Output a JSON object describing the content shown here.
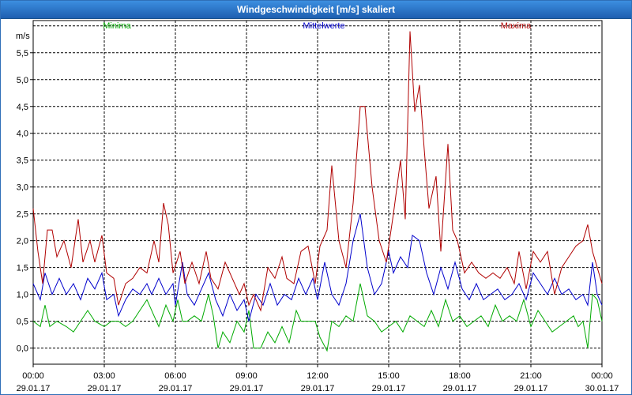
{
  "window": {
    "title": "Windgeschwindigkeit [m/s] skaliert"
  },
  "colors": {
    "minima": "#00aa00",
    "mittelwerte": "#0000cc",
    "maxima": "#b00000"
  },
  "chart_data": {
    "type": "line",
    "title": "Windgeschwindigkeit [m/s] skaliert",
    "ylabel": "m/s",
    "ylim": [
      -0.3,
      6.1
    ],
    "yticks": [
      "0,0",
      "0,5",
      "1,0",
      "1,5",
      "2,0",
      "2,5",
      "3,0",
      "3,5",
      "4,0",
      "4,5",
      "5,0",
      "5,5"
    ],
    "xrange_hours": [
      0,
      24
    ],
    "xticks": [
      {
        "time": "00:00",
        "date": "29.01.17"
      },
      {
        "time": "03:00",
        "date": "29.01.17"
      },
      {
        "time": "06:00",
        "date": "29.01.17"
      },
      {
        "time": "09:00",
        "date": "29.01.17"
      },
      {
        "time": "12:00",
        "date": "29.01.17"
      },
      {
        "time": "15:00",
        "date": "29.01.17"
      },
      {
        "time": "18:00",
        "date": "29.01.17"
      },
      {
        "time": "21:00",
        "date": "29.01.17"
      },
      {
        "time": "00:00",
        "date": "30.01.17"
      }
    ],
    "grid": true,
    "legend_position": "top",
    "series": [
      {
        "name": "Minima",
        "color": "#00aa00",
        "points": [
          [
            0,
            0.5
          ],
          [
            0.3,
            0.4
          ],
          [
            0.5,
            0.8
          ],
          [
            0.7,
            0.4
          ],
          [
            1.0,
            0.5
          ],
          [
            1.4,
            0.4
          ],
          [
            1.7,
            0.3
          ],
          [
            2.0,
            0.5
          ],
          [
            2.3,
            0.7
          ],
          [
            2.6,
            0.5
          ],
          [
            3.0,
            0.4
          ],
          [
            3.3,
            0.5
          ],
          [
            3.6,
            0.5
          ],
          [
            3.9,
            0.4
          ],
          [
            4.2,
            0.5
          ],
          [
            4.5,
            0.7
          ],
          [
            4.8,
            0.9
          ],
          [
            5.1,
            0.6
          ],
          [
            5.3,
            0.4
          ],
          [
            5.6,
            0.8
          ],
          [
            5.9,
            0.5
          ],
          [
            6.1,
            0.9
          ],
          [
            6.3,
            0.5
          ],
          [
            6.5,
            0.5
          ],
          [
            6.8,
            0.6
          ],
          [
            7.1,
            0.5
          ],
          [
            7.4,
            1.0
          ],
          [
            7.6,
            0.6
          ],
          [
            7.8,
            0.0
          ],
          [
            8.0,
            0.3
          ],
          [
            8.3,
            0.1
          ],
          [
            8.6,
            0.5
          ],
          [
            8.9,
            0.3
          ],
          [
            9.1,
            0.7
          ],
          [
            9.3,
            0.0
          ],
          [
            9.6,
            0.0
          ],
          [
            9.9,
            0.3
          ],
          [
            10.2,
            0.1
          ],
          [
            10.5,
            0.4
          ],
          [
            10.8,
            0.1
          ],
          [
            11.1,
            0.7
          ],
          [
            11.3,
            0.5
          ],
          [
            11.6,
            0.5
          ],
          [
            11.9,
            0.5
          ],
          [
            12.1,
            0.2
          ],
          [
            12.4,
            -0.05
          ],
          [
            12.6,
            0.5
          ],
          [
            12.9,
            0.4
          ],
          [
            13.2,
            0.6
          ],
          [
            13.5,
            0.5
          ],
          [
            13.8,
            1.2
          ],
          [
            14.1,
            0.6
          ],
          [
            14.4,
            0.5
          ],
          [
            14.7,
            0.3
          ],
          [
            15.0,
            0.4
          ],
          [
            15.3,
            0.5
          ],
          [
            15.6,
            0.3
          ],
          [
            15.9,
            0.6
          ],
          [
            16.2,
            0.5
          ],
          [
            16.5,
            0.4
          ],
          [
            16.8,
            0.7
          ],
          [
            17.1,
            0.4
          ],
          [
            17.4,
            0.9
          ],
          [
            17.7,
            0.5
          ],
          [
            18.0,
            0.6
          ],
          [
            18.3,
            0.4
          ],
          [
            18.6,
            0.5
          ],
          [
            18.9,
            0.6
          ],
          [
            19.2,
            0.4
          ],
          [
            19.5,
            0.8
          ],
          [
            19.8,
            0.5
          ],
          [
            20.1,
            0.6
          ],
          [
            20.4,
            0.5
          ],
          [
            20.7,
            0.9
          ],
          [
            21.0,
            0.4
          ],
          [
            21.3,
            0.7
          ],
          [
            21.6,
            0.5
          ],
          [
            21.9,
            0.3
          ],
          [
            22.2,
            0.4
          ],
          [
            22.5,
            0.5
          ],
          [
            22.8,
            0.6
          ],
          [
            23.0,
            0.4
          ],
          [
            23.2,
            0.5
          ],
          [
            23.4,
            0.0
          ],
          [
            23.6,
            1.0
          ],
          [
            23.8,
            0.9
          ],
          [
            24.0,
            0.5
          ]
        ]
      },
      {
        "name": "Mittelwerte",
        "color": "#0000cc",
        "points": [
          [
            0,
            1.2
          ],
          [
            0.3,
            0.9
          ],
          [
            0.5,
            1.4
          ],
          [
            0.8,
            1.0
          ],
          [
            1.1,
            1.3
          ],
          [
            1.4,
            1.0
          ],
          [
            1.7,
            1.2
          ],
          [
            2.0,
            0.9
          ],
          [
            2.3,
            1.3
          ],
          [
            2.6,
            1.1
          ],
          [
            2.9,
            1.4
          ],
          [
            3.1,
            0.9
          ],
          [
            3.4,
            1.0
          ],
          [
            3.6,
            0.6
          ],
          [
            3.9,
            0.9
          ],
          [
            4.2,
            1.1
          ],
          [
            4.5,
            1.0
          ],
          [
            4.8,
            1.2
          ],
          [
            5.0,
            1.0
          ],
          [
            5.3,
            1.3
          ],
          [
            5.6,
            1.0
          ],
          [
            5.9,
            1.2
          ],
          [
            6.0,
            0.8
          ],
          [
            6.3,
            1.6
          ],
          [
            6.5,
            1.0
          ],
          [
            6.8,
            0.8
          ],
          [
            7.1,
            1.1
          ],
          [
            7.4,
            1.4
          ],
          [
            7.7,
            0.9
          ],
          [
            8.0,
            0.6
          ],
          [
            8.3,
            1.0
          ],
          [
            8.6,
            0.7
          ],
          [
            8.9,
            0.9
          ],
          [
            9.1,
            0.5
          ],
          [
            9.4,
            1.0
          ],
          [
            9.7,
            0.8
          ],
          [
            10.0,
            1.2
          ],
          [
            10.3,
            0.8
          ],
          [
            10.6,
            1.0
          ],
          [
            10.9,
            0.9
          ],
          [
            11.2,
            1.3
          ],
          [
            11.5,
            1.0
          ],
          [
            11.8,
            1.3
          ],
          [
            12.0,
            0.9
          ],
          [
            12.3,
            1.6
          ],
          [
            12.6,
            1.0
          ],
          [
            12.9,
            0.8
          ],
          [
            13.2,
            1.2
          ],
          [
            13.5,
            2.0
          ],
          [
            13.8,
            2.5
          ],
          [
            14.1,
            1.5
          ],
          [
            14.4,
            1.0
          ],
          [
            14.7,
            1.2
          ],
          [
            15.0,
            1.8
          ],
          [
            15.2,
            1.4
          ],
          [
            15.5,
            1.7
          ],
          [
            15.8,
            1.5
          ],
          [
            16.0,
            2.1
          ],
          [
            16.3,
            2.0
          ],
          [
            16.6,
            1.4
          ],
          [
            16.9,
            1.0
          ],
          [
            17.2,
            1.5
          ],
          [
            17.5,
            1.1
          ],
          [
            17.8,
            1.6
          ],
          [
            18.1,
            1.1
          ],
          [
            18.4,
            0.9
          ],
          [
            18.7,
            1.2
          ],
          [
            19.0,
            0.9
          ],
          [
            19.3,
            1.0
          ],
          [
            19.6,
            1.1
          ],
          [
            19.9,
            0.9
          ],
          [
            20.2,
            1.0
          ],
          [
            20.5,
            1.2
          ],
          [
            20.8,
            0.9
          ],
          [
            21.1,
            1.4
          ],
          [
            21.4,
            1.2
          ],
          [
            21.7,
            1.0
          ],
          [
            22.0,
            1.3
          ],
          [
            22.3,
            1.0
          ],
          [
            22.6,
            1.1
          ],
          [
            22.9,
            0.9
          ],
          [
            23.2,
            1.0
          ],
          [
            23.4,
            0.8
          ],
          [
            23.6,
            1.6
          ],
          [
            23.8,
            1.0
          ],
          [
            24.0,
            0.8
          ]
        ]
      },
      {
        "name": "Maxima",
        "color": "#b00000",
        "points": [
          [
            0,
            2.6
          ],
          [
            0.2,
            1.8
          ],
          [
            0.4,
            1.2
          ],
          [
            0.6,
            2.2
          ],
          [
            0.8,
            2.2
          ],
          [
            1.0,
            1.7
          ],
          [
            1.3,
            2.0
          ],
          [
            1.6,
            1.5
          ],
          [
            1.9,
            2.4
          ],
          [
            2.1,
            1.6
          ],
          [
            2.4,
            2.0
          ],
          [
            2.6,
            1.6
          ],
          [
            2.9,
            2.1
          ],
          [
            3.1,
            1.4
          ],
          [
            3.4,
            1.3
          ],
          [
            3.6,
            0.8
          ],
          [
            3.9,
            1.2
          ],
          [
            4.2,
            1.3
          ],
          [
            4.5,
            1.5
          ],
          [
            4.8,
            1.4
          ],
          [
            5.1,
            2.0
          ],
          [
            5.3,
            1.6
          ],
          [
            5.5,
            2.7
          ],
          [
            5.7,
            2.3
          ],
          [
            5.9,
            1.4
          ],
          [
            6.2,
            1.8
          ],
          [
            6.4,
            1.2
          ],
          [
            6.7,
            1.6
          ],
          [
            7.0,
            1.2
          ],
          [
            7.3,
            1.8
          ],
          [
            7.5,
            1.3
          ],
          [
            7.8,
            1.1
          ],
          [
            8.1,
            1.6
          ],
          [
            8.4,
            1.3
          ],
          [
            8.7,
            1.0
          ],
          [
            8.9,
            1.2
          ],
          [
            9.1,
            0.8
          ],
          [
            9.3,
            1.0
          ],
          [
            9.6,
            0.7
          ],
          [
            9.9,
            1.5
          ],
          [
            10.2,
            1.3
          ],
          [
            10.5,
            1.7
          ],
          [
            10.7,
            1.3
          ],
          [
            11.0,
            1.2
          ],
          [
            11.3,
            1.8
          ],
          [
            11.6,
            1.9
          ],
          [
            11.9,
            1.2
          ],
          [
            12.1,
            1.9
          ],
          [
            12.4,
            2.2
          ],
          [
            12.6,
            3.4
          ],
          [
            12.9,
            2.0
          ],
          [
            13.2,
            1.5
          ],
          [
            13.5,
            2.7
          ],
          [
            13.8,
            4.5
          ],
          [
            14.0,
            4.5
          ],
          [
            14.3,
            3.0
          ],
          [
            14.6,
            2.0
          ],
          [
            14.9,
            1.6
          ],
          [
            15.2,
            2.5
          ],
          [
            15.5,
            3.5
          ],
          [
            15.7,
            2.4
          ],
          [
            15.9,
            5.9
          ],
          [
            16.1,
            4.4
          ],
          [
            16.3,
            4.9
          ],
          [
            16.5,
            3.7
          ],
          [
            16.7,
            2.6
          ],
          [
            17.0,
            3.2
          ],
          [
            17.2,
            1.8
          ],
          [
            17.5,
            3.8
          ],
          [
            17.7,
            2.2
          ],
          [
            17.9,
            2.0
          ],
          [
            18.2,
            1.4
          ],
          [
            18.5,
            1.6
          ],
          [
            18.8,
            1.4
          ],
          [
            19.1,
            1.3
          ],
          [
            19.4,
            1.4
          ],
          [
            19.7,
            1.3
          ],
          [
            20.0,
            1.5
          ],
          [
            20.3,
            1.2
          ],
          [
            20.5,
            1.8
          ],
          [
            20.8,
            1.1
          ],
          [
            21.1,
            1.8
          ],
          [
            21.4,
            1.6
          ],
          [
            21.7,
            1.8
          ],
          [
            22.0,
            1.0
          ],
          [
            22.3,
            1.5
          ],
          [
            22.6,
            1.7
          ],
          [
            22.9,
            1.9
          ],
          [
            23.2,
            2.0
          ],
          [
            23.4,
            2.3
          ],
          [
            23.6,
            1.8
          ],
          [
            23.8,
            1.5
          ],
          [
            24.0,
            1.2
          ]
        ]
      }
    ]
  }
}
